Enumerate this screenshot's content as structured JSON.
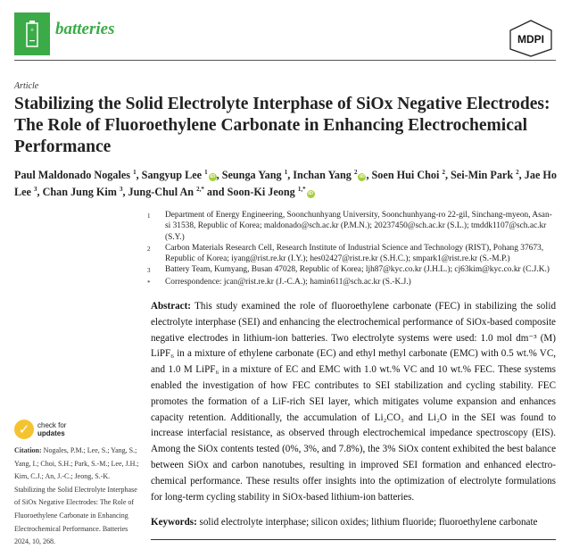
{
  "header": {
    "journal": "batteries",
    "publisher": "MDPI",
    "brand_color": "#3aab47"
  },
  "article": {
    "type": "Article",
    "title": "Stabilizing the Solid Electrolyte Interphase of SiOx Negative Electrodes: The Role of Fluoroethylene Carbonate in Enhancing Electrochemical Performance",
    "authors": [
      {
        "name": "Paul Maldonado Nogales",
        "sup": "1",
        "orcid": false
      },
      {
        "name": "Sangyup Lee",
        "sup": "1",
        "orcid": true
      },
      {
        "name": "Seunga Yang",
        "sup": "1",
        "orcid": false
      },
      {
        "name": "Inchan Yang",
        "sup": "2",
        "orcid": true
      },
      {
        "name": "Soen Hui Choi",
        "sup": "2",
        "orcid": false
      },
      {
        "name": "Sei-Min Park",
        "sup": "2",
        "orcid": false
      },
      {
        "name": "Jae Ho Lee",
        "sup": "3",
        "orcid": false
      },
      {
        "name": "Chan Jung Kim",
        "sup": "3",
        "orcid": false
      },
      {
        "name": "Jung-Chul An",
        "sup": "2,*",
        "orcid": false
      },
      {
        "name": "Soon-Ki Jeong",
        "sup": "1,*",
        "orcid": true
      }
    ],
    "and": "and",
    "affiliations": [
      {
        "n": "1",
        "text": "Department of Energy Engineering, Soonchunhyang University, Soonchunhyang-ro 22-gil, Sinchang-myeon, Asan-si 31538, Republic of Korea; maldonado@sch.ac.kr (P.M.N.); 20237450@sch.ac.kr (S.L.); tmddk1107@sch.ac.kr (S.Y.)"
      },
      {
        "n": "2",
        "text": "Carbon Materials Research Cell, Research Institute of Industrial Science and Technology (RIST), Pohang 37673, Republic of Korea; iyang@rist.re.kr (I.Y.); hes02427@rist.re.kr (S.H.C.); smpark1@rist.re.kr (S.-M.P.)"
      },
      {
        "n": "3",
        "text": "Battery Team, Kumyang, Busan 47028, Republic of Korea; ljh87@kyc.co.kr (J.H.L.); cj63kim@kyc.co.kr (C.J.K.)"
      },
      {
        "n": "*",
        "text": "Correspondence: jcan@rist.re.kr (J.-C.A.); hamin611@sch.ac.kr (S.-K.J.)"
      }
    ],
    "abstract_label": "Abstract:",
    "abstract": "This study examined the role of fluoroethylene carbonate (FEC) in stabilizing the solid electrolyte interphase (SEI) and enhancing the electrochemical performance of SiOx-based composite negative electrodes in lithium-ion batteries. Two electrolyte systems were used: 1.0 mol dm⁻³ (M) LiPF₆ in a mixture of ethylene carbonate (EC) and ethyl methyl carbonate (EMC) with 0.5 wt.% VC, and 1.0 M LiPF₆ in a mixture of EC and EMC with 1.0 wt.% VC and 10 wt.% FEC. These systems enabled the investigation of how FEC contributes to SEI stabilization and cycling stability. FEC promotes the formation of a LiF-rich SEI layer, which mitigates volume expansion and enhances capacity retention. Additionally, the accumulation of Li₂CO₃ and Li₂O in the SEI was found to increase interfacial resistance, as observed through electrochemical impedance spectroscopy (EIS). Among the SiOx contents tested (0%, 3%, and 7.8%), the 3% SiOx content exhibited the best balance between SiOx and carbon nanotubes, resulting in improved SEI formation and enhanced electro-chemical performance. These results offer insights into the optimization of electrolyte formulations for long-term cycling stability in SiOx-based lithium-ion batteries.",
    "keywords_label": "Keywords:",
    "keywords": "solid electrolyte interphase; silicon oxides; lithium fluoride; fluoroethylene carbonate"
  },
  "sidebar": {
    "check_line1": "check for",
    "check_line2": "updates",
    "citation_label": "Citation:",
    "citation": "Nogales, P.M.; Lee, S.; Yang, S.; Yang, I.; Choi, S.H.; Park, S.-M.; Lee, J.H.; Kim, C.J.; An, J.-C.; Jeong, S.-K. Stabilizing the Solid Electrolyte Interphase of SiOx Negative Electrodes: The Role of Fluoroethylene Carbonate in Enhancing Electrochemical Performance. Batteries 2024, 10, 268."
  }
}
